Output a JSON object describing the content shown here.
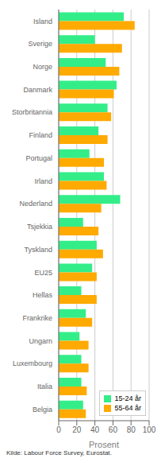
{
  "chart_data": {
    "type": "bar",
    "orientation": "horizontal",
    "categories": [
      "Island",
      "Sverige",
      "Norge",
      "Danmark",
      "Storbritannia",
      "Finland",
      "Portugal",
      "Irland",
      "Nederland",
      "Tsjekkia",
      "Tyskland",
      "EU25",
      "Hellas",
      "Frankrike",
      "Ungarn",
      "Luxembourg",
      "Italia",
      "Belgia"
    ],
    "series": [
      {
        "name": "15-24 år",
        "color": "#33ee88",
        "values": [
          72,
          40,
          52,
          64,
          54,
          44,
          34,
          50,
          68,
          27,
          42,
          37,
          25,
          30,
          23,
          25,
          25,
          27
        ]
      },
      {
        "name": "55-64 år",
        "color": "#ffaa00",
        "values": [
          84,
          70,
          67,
          61,
          58,
          54,
          50,
          53,
          47,
          44,
          49,
          42,
          42,
          37,
          33,
          33,
          31,
          30
        ]
      }
    ],
    "xlabel": "Prosent",
    "xlim": [
      0,
      100
    ],
    "xticks": [
      0,
      20,
      40,
      60,
      80,
      100
    ],
    "grid": true,
    "legend": "lower right",
    "annotations": [
      "Kilde: Labour Force Survey, Eurostat."
    ]
  }
}
